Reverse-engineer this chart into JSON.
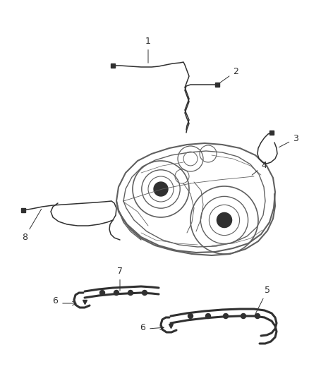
{
  "bg_color": "#ffffff",
  "lc": "#606060",
  "dlc": "#303030",
  "figsize": [
    4.38,
    5.33
  ],
  "dpi": 100
}
